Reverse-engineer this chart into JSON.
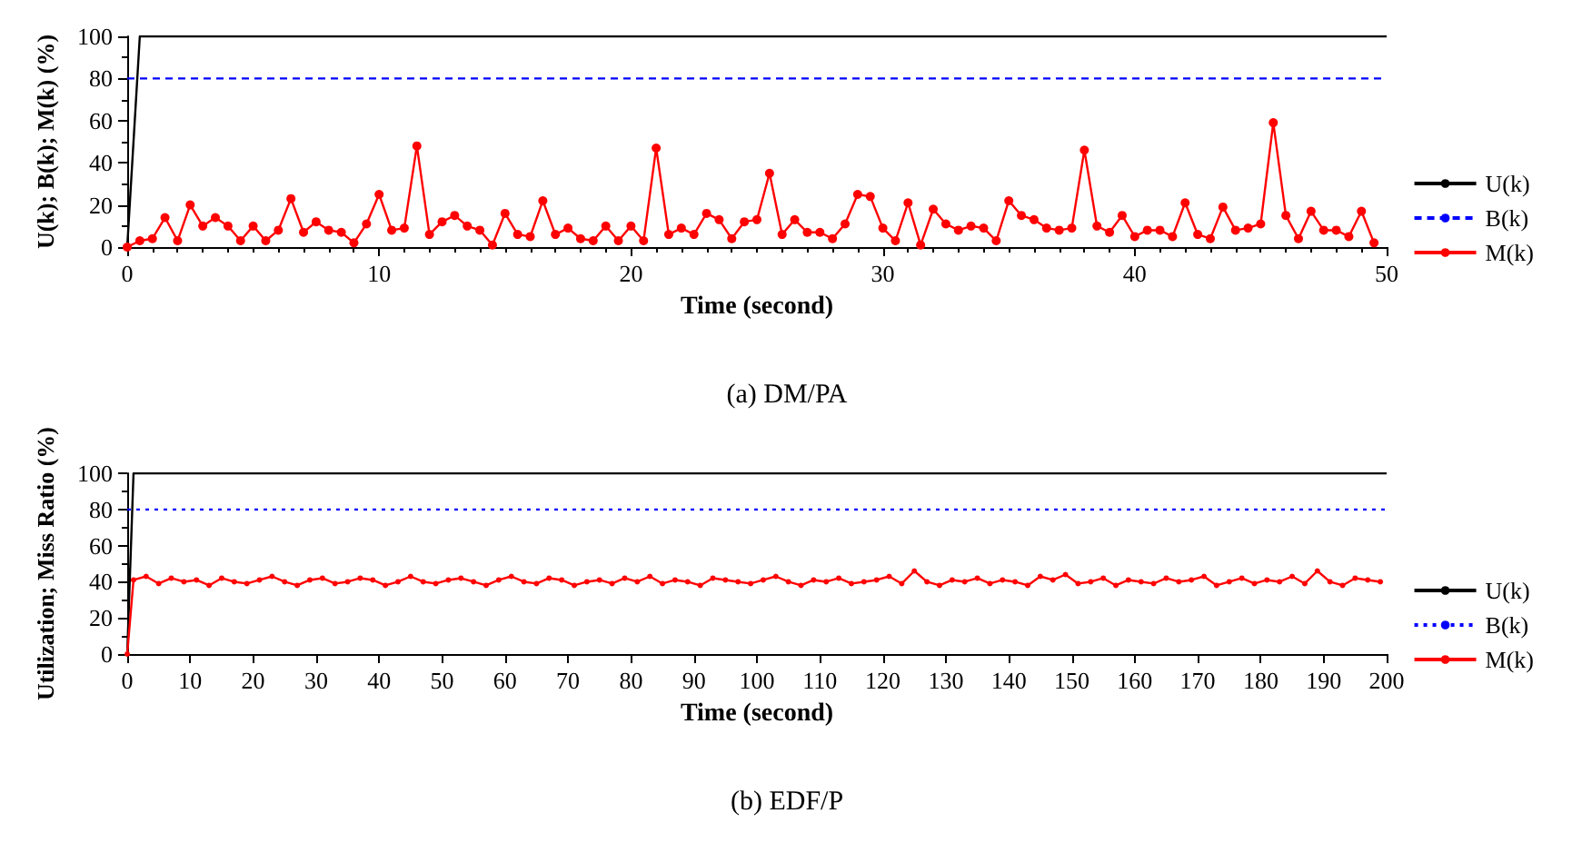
{
  "chart_data": [
    {
      "type": "line",
      "title": "(a) DM/PA",
      "xlabel": "Time (second)",
      "ylabel": "U(k); B(k); M(k) (%)",
      "xlim": [
        0,
        50
      ],
      "xticks": [
        0,
        10,
        20,
        30,
        40,
        50
      ],
      "ylim": [
        0,
        100
      ],
      "yticks": [
        0,
        20,
        40,
        60,
        80,
        100
      ],
      "grid": false,
      "legend": "right",
      "series": [
        {
          "name": "U(k)",
          "color": "#000000",
          "line_style": "solid",
          "marker": "none",
          "x": [
            0,
            0.5,
            50
          ],
          "values": [
            0,
            100,
            100
          ]
        },
        {
          "name": "B(k)",
          "color": "#0000ff",
          "line_style": "dashed",
          "marker": "none",
          "x": [
            0,
            50
          ],
          "values": [
            80,
            80
          ]
        },
        {
          "name": "M(k)",
          "color": "#ff0000",
          "line_style": "solid",
          "marker": "circle",
          "x": [
            0,
            0.5,
            1,
            1.5,
            2,
            2.5,
            3,
            3.5,
            4,
            4.5,
            5,
            5.5,
            6,
            6.5,
            7,
            7.5,
            8,
            8.5,
            9,
            9.5,
            10,
            10.5,
            11,
            11.5,
            12,
            12.5,
            13,
            13.5,
            14,
            14.5,
            15,
            15.5,
            16,
            16.5,
            17,
            17.5,
            18,
            18.5,
            19,
            19.5,
            20,
            20.5,
            21,
            21.5,
            22,
            22.5,
            23,
            23.5,
            24,
            24.5,
            25,
            25.5,
            26,
            26.5,
            27,
            27.5,
            28,
            28.5,
            29,
            29.5,
            30,
            30.5,
            31,
            31.5,
            32,
            32.5,
            33,
            33.5,
            34,
            34.5,
            35,
            35.5,
            36,
            36.5,
            37,
            37.5,
            38,
            38.5,
            39,
            39.5,
            40,
            40.5,
            41,
            41.5,
            42,
            42.5,
            43,
            43.5,
            44,
            44.5,
            45,
            45.5,
            46,
            46.5,
            47,
            47.5,
            48,
            48.5,
            49,
            49.5
          ],
          "values": [
            0,
            3,
            4,
            14,
            3,
            20,
            10,
            14,
            10,
            3,
            10,
            3,
            8,
            23,
            7,
            12,
            8,
            7,
            2,
            11,
            25,
            8,
            9,
            48,
            6,
            12,
            15,
            10,
            8,
            1,
            16,
            6,
            5,
            22,
            6,
            9,
            4,
            3,
            10,
            3,
            10,
            3,
            47,
            6,
            9,
            6,
            16,
            13,
            4,
            12,
            13,
            35,
            6,
            13,
            7,
            7,
            4,
            11,
            25,
            24,
            9,
            3,
            21,
            1,
            18,
            11,
            8,
            10,
            9,
            3,
            22,
            15,
            13,
            9,
            8,
            9,
            46,
            10,
            7,
            15,
            5,
            8,
            8,
            5,
            21,
            6,
            4,
            19,
            8,
            9,
            11,
            59,
            15,
            4,
            17,
            8,
            8,
            5,
            17,
            2
          ]
        }
      ]
    },
    {
      "type": "line",
      "title": "(b) EDF/P",
      "xlabel": "Time (second)",
      "ylabel": "Utilization; Miss Ratio (%)",
      "xlim": [
        0,
        200
      ],
      "xticks": [
        0,
        10,
        20,
        30,
        40,
        50,
        60,
        70,
        80,
        90,
        100,
        110,
        120,
        130,
        140,
        150,
        160,
        170,
        180,
        190,
        200
      ],
      "ylim": [
        0,
        100
      ],
      "yticks": [
        0,
        20,
        40,
        60,
        80,
        100
      ],
      "grid": false,
      "legend": "right",
      "series": [
        {
          "name": "U(k)",
          "color": "#000000",
          "line_style": "solid",
          "marker": "none",
          "x": [
            0,
            1,
            200
          ],
          "values": [
            0,
            100,
            100
          ]
        },
        {
          "name": "B(k)",
          "color": "#0000ff",
          "line_style": "dotted",
          "marker": "none",
          "x": [
            0,
            200
          ],
          "values": [
            80,
            80
          ]
        },
        {
          "name": "M(k)",
          "color": "#ff0000",
          "line_style": "solid",
          "marker": "circle",
          "x": [
            0,
            1,
            3,
            5,
            7,
            9,
            11,
            13,
            15,
            17,
            19,
            21,
            23,
            25,
            27,
            29,
            31,
            33,
            35,
            37,
            39,
            41,
            43,
            45,
            47,
            49,
            51,
            53,
            55,
            57,
            59,
            61,
            63,
            65,
            67,
            69,
            71,
            73,
            75,
            77,
            79,
            81,
            83,
            85,
            87,
            89,
            91,
            93,
            95,
            97,
            99,
            101,
            103,
            105,
            107,
            109,
            111,
            113,
            115,
            117,
            119,
            121,
            123,
            125,
            127,
            129,
            131,
            133,
            135,
            137,
            139,
            141,
            143,
            145,
            147,
            149,
            151,
            153,
            155,
            157,
            159,
            161,
            163,
            165,
            167,
            169,
            171,
            173,
            175,
            177,
            179,
            181,
            183,
            185,
            187,
            189,
            191,
            193,
            195,
            197,
            199
          ],
          "values": [
            0,
            41,
            43,
            39,
            42,
            40,
            41,
            38,
            42,
            40,
            39,
            41,
            43,
            40,
            38,
            41,
            42,
            39,
            40,
            42,
            41,
            38,
            40,
            43,
            40,
            39,
            41,
            42,
            40,
            38,
            41,
            43,
            40,
            39,
            42,
            41,
            38,
            40,
            41,
            39,
            42,
            40,
            43,
            39,
            41,
            40,
            38,
            42,
            41,
            40,
            39,
            41,
            43,
            40,
            38,
            41,
            40,
            42,
            39,
            40,
            41,
            43,
            39,
            46,
            40,
            38,
            41,
            40,
            42,
            39,
            41,
            40,
            38,
            43,
            41,
            44,
            39,
            40,
            42,
            38,
            41,
            40,
            39,
            42,
            40,
            41,
            43,
            38,
            40,
            42,
            39,
            41,
            40,
            43,
            39,
            46,
            40,
            38,
            42,
            41,
            40
          ]
        }
      ]
    }
  ]
}
